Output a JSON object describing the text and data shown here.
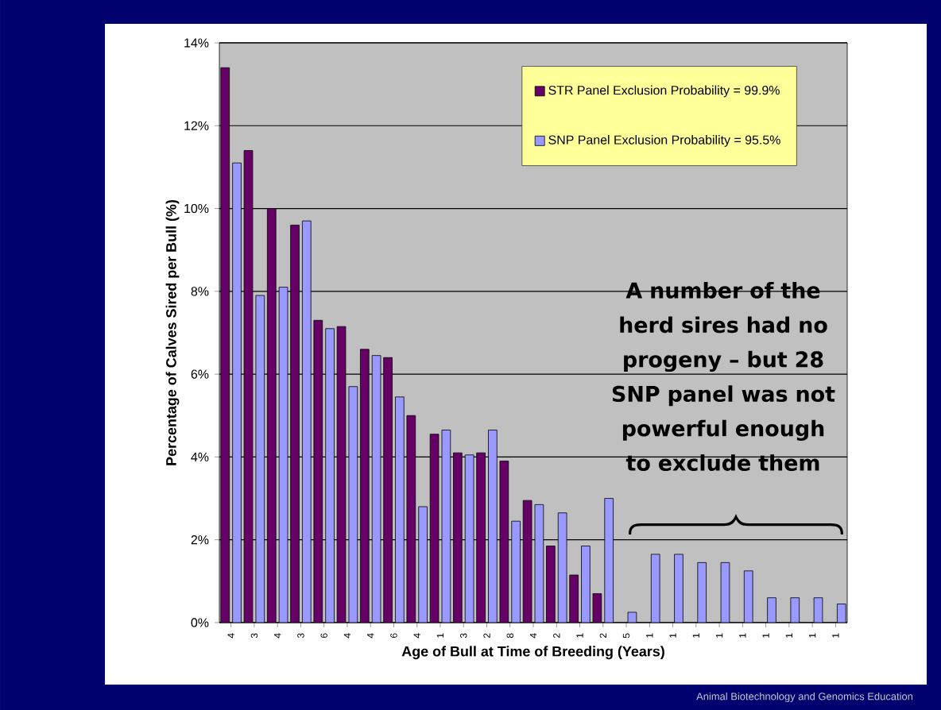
{
  "chart_data": {
    "type": "bar",
    "xlabel": "Age of Bull at Time of Breeding (Years)",
    "ylabel": "Percentage of Calves Sired per Bull (%)",
    "categories": [
      "4",
      "3",
      "4",
      "3",
      "6",
      "4",
      "4",
      "6",
      "4",
      "1",
      "3",
      "2",
      "8",
      "4",
      "2",
      "1",
      "2",
      "5",
      "1",
      "1",
      "1",
      "1",
      "1",
      "1",
      "1",
      "1",
      "1"
    ],
    "series": [
      {
        "name": "STR Panel Exclusion Probability = 99.9%",
        "color": "#660066",
        "values": [
          13.4,
          11.4,
          10.0,
          9.6,
          7.3,
          7.15,
          6.6,
          6.4,
          5.0,
          4.55,
          4.1,
          4.1,
          3.9,
          2.95,
          1.85,
          1.15,
          0.7,
          null,
          null,
          null,
          null,
          null,
          null,
          null,
          null,
          null,
          null
        ]
      },
      {
        "name": "SNP Panel Exclusion Probability = 95.5%",
        "color": "#9999ff",
        "values": [
          11.1,
          7.9,
          8.1,
          9.7,
          7.1,
          5.7,
          6.45,
          5.45,
          2.8,
          4.65,
          4.05,
          4.65,
          2.45,
          2.85,
          2.65,
          1.85,
          3.0,
          0.25,
          1.65,
          1.65,
          1.45,
          1.45,
          1.25,
          0.6,
          0.6,
          0.6,
          0.45
        ]
      }
    ],
    "ylim": [
      0,
      14
    ],
    "yticks": [
      {
        "value": 0,
        "label": "0%"
      },
      {
        "value": 2,
        "label": "2%"
      },
      {
        "value": 4,
        "label": "4%"
      },
      {
        "value": 6,
        "label": "6%"
      },
      {
        "value": 8,
        "label": "8%"
      },
      {
        "value": 10,
        "label": "10%"
      },
      {
        "value": 12,
        "label": "12%"
      },
      {
        "value": 14,
        "label": "14%"
      }
    ],
    "grid": "y",
    "legend": "top right",
    "annotations": [
      "A number of the herd sires had no progeny – but 28 SNP panel was not powerful enough to exclude them",
      "Animal Biotechnology and Genomics Education"
    ]
  }
}
